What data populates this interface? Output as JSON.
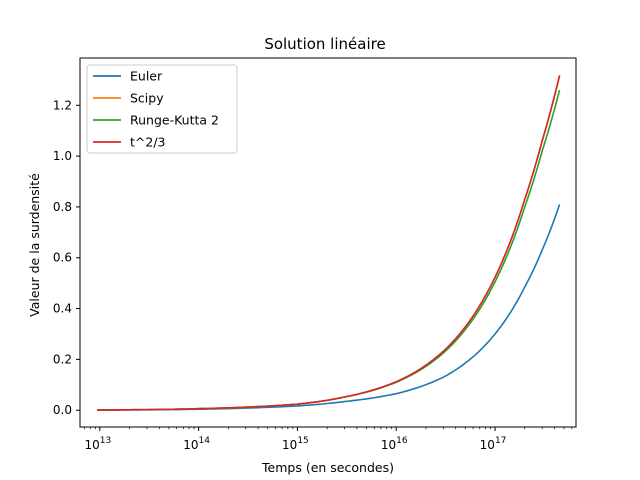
{
  "chart_data": {
    "type": "line",
    "title": "Solution linéaire",
    "xlabel": "Temps (en secondes)",
    "ylabel": "Valeur de la surdensité",
    "xscale": "log",
    "xlim": [
      6300000000000.0,
      6.6e+17
    ],
    "ylim": [
      -0.066,
      1.386
    ],
    "grid": false,
    "legend_position": "top-left",
    "x_major_ticks": [
      {
        "value": 10000000000000.0,
        "base": "10",
        "exp": "13"
      },
      {
        "value": 100000000000000.0,
        "base": "10",
        "exp": "14"
      },
      {
        "value": 1000000000000000.0,
        "base": "10",
        "exp": "15"
      },
      {
        "value": 1e+16,
        "base": "10",
        "exp": "16"
      },
      {
        "value": 1e+17,
        "base": "10",
        "exp": "17"
      }
    ],
    "y_ticks": [
      {
        "value": 0.0,
        "label": "0.0"
      },
      {
        "value": 0.2,
        "label": "0.2"
      },
      {
        "value": 0.4,
        "label": "0.4"
      },
      {
        "value": 0.6,
        "label": "0.6"
      },
      {
        "value": 0.8,
        "label": "0.8"
      },
      {
        "value": 1.0,
        "label": "1.0"
      },
      {
        "value": 1.2,
        "label": "1.2"
      }
    ],
    "series": [
      {
        "name": "Euler",
        "color": "#1f77b4",
        "x": [
          9400000000000.0,
          30000000000000.0,
          100000000000000.0,
          300000000000000.0,
          1000000000000000.0,
          3000000000000000.0,
          1e+16,
          3e+16,
          1e+17,
          2e+17,
          3e+17,
          4.5e+17
        ],
        "y": [
          0.0005,
          0.0016,
          0.004,
          0.0085,
          0.017,
          0.034,
          0.065,
          0.13,
          0.3,
          0.485,
          0.63,
          0.81
        ]
      },
      {
        "name": "Scipy",
        "color": "#ff7f0e",
        "x": [
          9400000000000.0,
          30000000000000.0,
          100000000000000.0,
          300000000000000.0,
          1000000000000000.0,
          3000000000000000.0,
          1e+16,
          3e+16,
          1e+17,
          2e+17,
          3e+17,
          4.5e+17
        ],
        "y": [
          0.0011,
          0.0024,
          0.006,
          0.012,
          0.024,
          0.052,
          0.112,
          0.232,
          0.523,
          0.83,
          1.06,
          1.315
        ]
      },
      {
        "name": "Runge-Kutta 2",
        "color": "#2ca02c",
        "x": [
          9400000000000.0,
          30000000000000.0,
          100000000000000.0,
          300000000000000.0,
          1000000000000000.0,
          3000000000000000.0,
          1e+16,
          3e+16,
          1e+17,
          2e+17,
          3e+17,
          4.5e+17
        ],
        "y": [
          0.0011,
          0.0024,
          0.006,
          0.012,
          0.024,
          0.052,
          0.11,
          0.225,
          0.505,
          0.8,
          1.02,
          1.26
        ]
      },
      {
        "name": "t^2/3",
        "color": "#d62728",
        "x": [
          9400000000000.0,
          30000000000000.0,
          100000000000000.0,
          300000000000000.0,
          1000000000000000.0,
          3000000000000000.0,
          1e+16,
          3e+16,
          1e+17,
          2e+17,
          3e+17,
          4.5e+17
        ],
        "y": [
          0.0011,
          0.0024,
          0.006,
          0.012,
          0.024,
          0.052,
          0.112,
          0.232,
          0.523,
          0.83,
          1.06,
          1.318
        ]
      }
    ]
  }
}
